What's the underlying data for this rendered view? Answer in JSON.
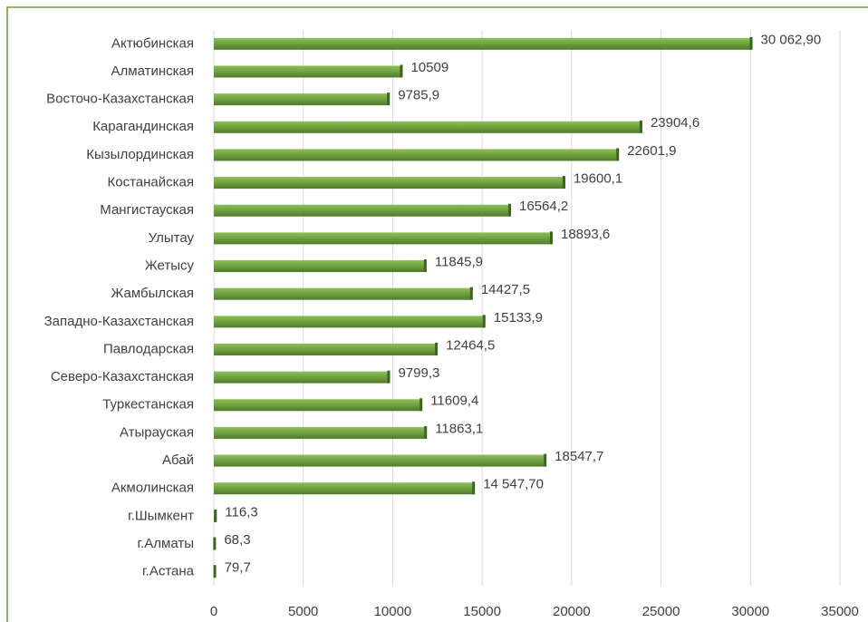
{
  "chart_data": {
    "type": "bar",
    "orientation": "horizontal",
    "categories": [
      "Актюбинская",
      "Алматинская",
      "Восточо-Казахстанская",
      "Карагандинская",
      "Кызылординская",
      "Костанайская",
      "Мангистауская",
      "Улытау",
      "Жетысу",
      "Жамбылская",
      "Западно-Казахстанская",
      "Павлодарская",
      "Северо-Казахстанская",
      "Туркестанская",
      "Атырауская",
      "Абай",
      "Акмолинская",
      "г.Шымкент",
      "г.Алматы",
      "г.Астана"
    ],
    "values": [
      30062.9,
      10509,
      9785.9,
      23904.6,
      22601.9,
      19600.1,
      16564.2,
      18893.6,
      11845.9,
      14427.5,
      15133.9,
      12464.5,
      9799.3,
      11609.4,
      11863.1,
      18547.7,
      14547.7,
      116.3,
      68.3,
      79.7
    ],
    "value_labels": [
      "30 062,90",
      "10509",
      "9785,9",
      "23904,6",
      "22601,9",
      "19600,1",
      "16564,2",
      "18893,6",
      "11845,9",
      "14427,5",
      "15133,9",
      "12464,5",
      "9799,3",
      "11609,4",
      "11863,1",
      "18547,7",
      "14 547,70",
      "116,3",
      "68,3",
      "79,7"
    ],
    "color": "#70a040",
    "xlim": [
      0,
      35000
    ],
    "xticks": [
      0,
      5000,
      10000,
      15000,
      20000,
      25000,
      30000,
      35000
    ],
    "grid": true
  }
}
